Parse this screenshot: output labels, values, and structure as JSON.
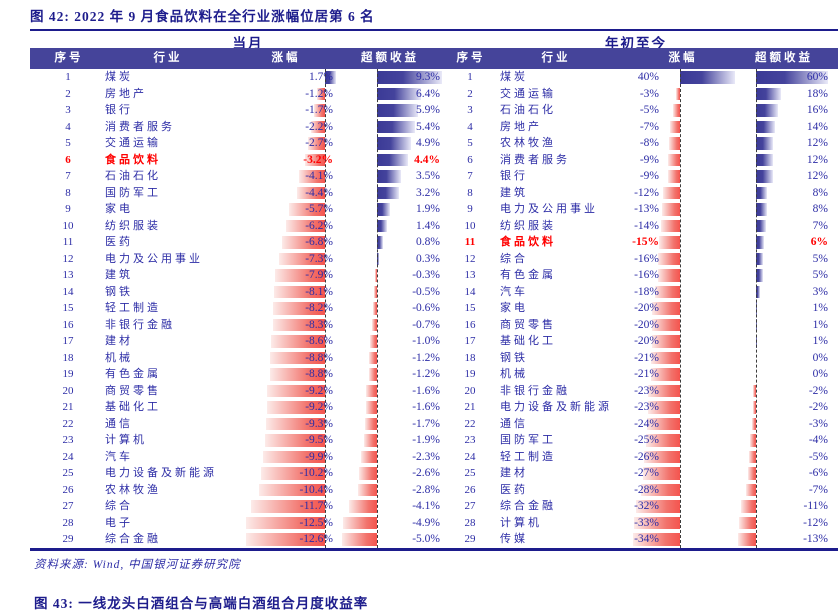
{
  "title": "图 42: 2022 年 9 月食品饮料在全行业涨幅位居第 6 名",
  "source": "资料来源: Wind, 中国银河证券研究院",
  "next_figure_caption": "图 43: 一线龙头白酒组合与高端白酒组合月度收益率",
  "colors": {
    "title_navy": "#1d1c8c",
    "text_navy": "#2d2da6",
    "header_bg": "#45449a",
    "bar_blue": "#3b3a96",
    "bar_red": "#f4544e",
    "highlight_red": "#ff0000"
  },
  "chart_data": [
    {
      "type": "table",
      "group_label": "当月",
      "columns": [
        "序号",
        "行业",
        "涨幅",
        "超额收益"
      ],
      "highlight_row": 6,
      "rows": [
        [
          1,
          "煤炭",
          "1.7%",
          1.7,
          "9.3%",
          9.3
        ],
        [
          2,
          "房地产",
          "-1.2%",
          -1.2,
          "6.4%",
          6.4
        ],
        [
          3,
          "银行",
          "-1.7%",
          -1.7,
          "5.9%",
          5.9
        ],
        [
          4,
          "消费者服务",
          "-2.2%",
          -2.2,
          "5.4%",
          5.4
        ],
        [
          5,
          "交通运输",
          "-2.7%",
          -2.7,
          "4.9%",
          4.9
        ],
        [
          6,
          "食品饮料",
          "-3.2%",
          -3.2,
          "4.4%",
          4.4
        ],
        [
          7,
          "石油石化",
          "-4.1%",
          -4.1,
          "3.5%",
          3.5
        ],
        [
          8,
          "国防军工",
          "-4.4%",
          -4.4,
          "3.2%",
          3.2
        ],
        [
          9,
          "家电",
          "-5.7%",
          -5.7,
          "1.9%",
          1.9
        ],
        [
          10,
          "纺织服装",
          "-6.2%",
          -6.2,
          "1.4%",
          1.4
        ],
        [
          11,
          "医药",
          "-6.8%",
          -6.8,
          "0.8%",
          0.8
        ],
        [
          12,
          "电力及公用事业",
          "-7.3%",
          -7.3,
          "0.3%",
          0.3
        ],
        [
          13,
          "建筑",
          "-7.9%",
          -7.9,
          "-0.3%",
          -0.3
        ],
        [
          14,
          "钢铁",
          "-8.1%",
          -8.1,
          "-0.5%",
          -0.5
        ],
        [
          15,
          "轻工制造",
          "-8.2%",
          -8.2,
          "-0.6%",
          -0.6
        ],
        [
          16,
          "非银行金融",
          "-8.3%",
          -8.3,
          "-0.7%",
          -0.7
        ],
        [
          17,
          "建材",
          "-8.6%",
          -8.6,
          "-1.0%",
          -1.0
        ],
        [
          18,
          "机械",
          "-8.8%",
          -8.8,
          "-1.2%",
          -1.2
        ],
        [
          19,
          "有色金属",
          "-8.8%",
          -8.8,
          "-1.2%",
          -1.2
        ],
        [
          20,
          "商贸零售",
          "-9.2%",
          -9.2,
          "-1.6%",
          -1.6
        ],
        [
          21,
          "基础化工",
          "-9.2%",
          -9.2,
          "-1.6%",
          -1.6
        ],
        [
          22,
          "通信",
          "-9.3%",
          -9.3,
          "-1.7%",
          -1.7
        ],
        [
          23,
          "计算机",
          "-9.5%",
          -9.5,
          "-1.9%",
          -1.9
        ],
        [
          24,
          "汽车",
          "-9.9%",
          -9.9,
          "-2.3%",
          -2.3
        ],
        [
          25,
          "电力设备及新能源",
          "-10.2%",
          -10.2,
          "-2.6%",
          -2.6
        ],
        [
          26,
          "农林牧渔",
          "-10.4%",
          -10.4,
          "-2.8%",
          -2.8
        ],
        [
          27,
          "综合",
          "-11.7%",
          -11.7,
          "-4.1%",
          -4.1
        ],
        [
          28,
          "电子",
          "-12.5%",
          -12.5,
          "-4.9%",
          -4.9
        ],
        [
          29,
          "综合金融",
          "-12.6%",
          -12.6,
          "-5.0%",
          -5.0
        ]
      ]
    },
    {
      "type": "table",
      "group_label": "年初至今",
      "columns": [
        "序号",
        "行业",
        "涨幅",
        "超额收益"
      ],
      "highlight_row": 11,
      "rows": [
        [
          1,
          "煤炭",
          "40%",
          40,
          "60%",
          60
        ],
        [
          2,
          "交通运输",
          "-3%",
          -3,
          "18%",
          18
        ],
        [
          3,
          "石油石化",
          "-5%",
          -5,
          "16%",
          16
        ],
        [
          4,
          "房地产",
          "-7%",
          -7,
          "14%",
          14
        ],
        [
          5,
          "农林牧渔",
          "-8%",
          -8,
          "12%",
          12
        ],
        [
          6,
          "消费者服务",
          "-9%",
          -9,
          "12%",
          12
        ],
        [
          7,
          "银行",
          "-9%",
          -9,
          "12%",
          12
        ],
        [
          8,
          "建筑",
          "-12%",
          -12,
          "8%",
          8
        ],
        [
          9,
          "电力及公用事业",
          "-13%",
          -13,
          "8%",
          8
        ],
        [
          10,
          "纺织服装",
          "-14%",
          -14,
          "7%",
          7
        ],
        [
          11,
          "食品饮料",
          "-15%",
          -15,
          "6%",
          6
        ],
        [
          12,
          "综合",
          "-16%",
          -16,
          "5%",
          5
        ],
        [
          13,
          "有色金属",
          "-16%",
          -16,
          "5%",
          5
        ],
        [
          14,
          "汽车",
          "-18%",
          -18,
          "3%",
          3
        ],
        [
          15,
          "家电",
          "-20%",
          -20,
          "1%",
          1
        ],
        [
          16,
          "商贸零售",
          "-20%",
          -20,
          "1%",
          1
        ],
        [
          17,
          "基础化工",
          "-20%",
          -20,
          "1%",
          1
        ],
        [
          18,
          "钢铁",
          "-21%",
          -21,
          "0%",
          0
        ],
        [
          19,
          "机械",
          "-21%",
          -21,
          "0%",
          0
        ],
        [
          20,
          "非银行金融",
          "-23%",
          -23,
          "-2%",
          -2
        ],
        [
          21,
          "电力设备及新能源",
          "-23%",
          -23,
          "-2%",
          -2
        ],
        [
          22,
          "通信",
          "-24%",
          -24,
          "-3%",
          -3
        ],
        [
          23,
          "国防军工",
          "-25%",
          -25,
          "-4%",
          -4
        ],
        [
          24,
          "轻工制造",
          "-26%",
          -26,
          "-5%",
          -5
        ],
        [
          25,
          "建材",
          "-27%",
          -27,
          "-6%",
          -6
        ],
        [
          26,
          "医药",
          "-28%",
          -28,
          "-7%",
          -7
        ],
        [
          27,
          "综合金融",
          "-32%",
          -32,
          "-11%",
          -11
        ],
        [
          28,
          "计算机",
          "-33%",
          -33,
          "-12%",
          -12
        ],
        [
          29,
          "传媒",
          "-34%",
          -34,
          "-13%",
          -13
        ]
      ]
    }
  ]
}
